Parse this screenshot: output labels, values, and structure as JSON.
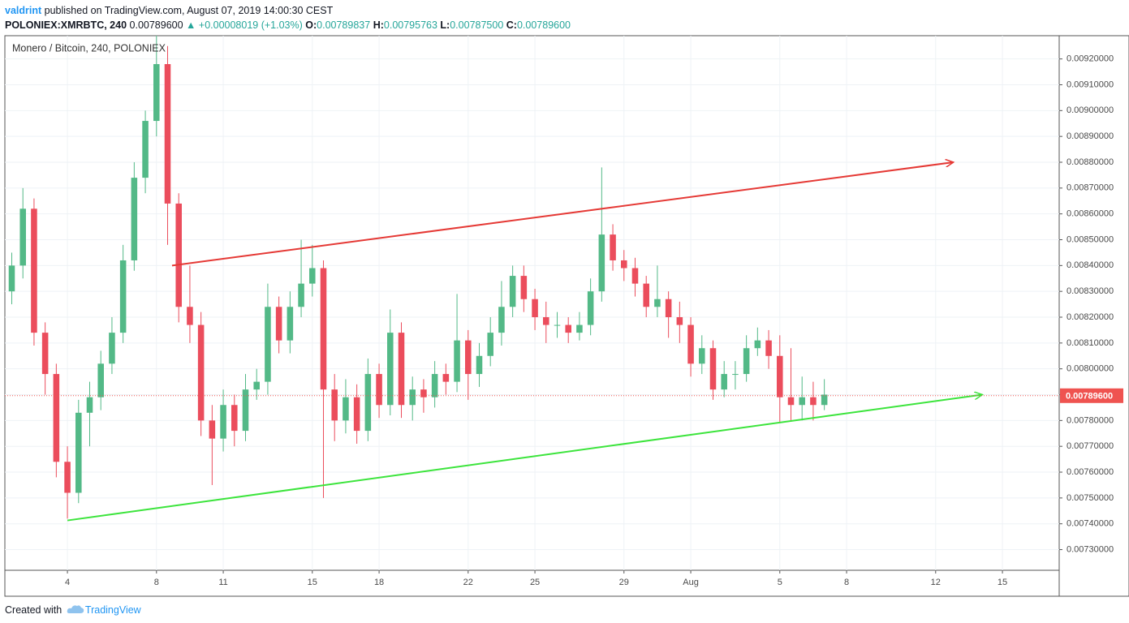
{
  "header": {
    "author": "valdrint",
    "published": "published on TradingView.com, August 07, 2019 14:00:30 CEST",
    "symbol": "POLONIEX:XMRBTC, 240",
    "price": "0.00789600",
    "change": "▲ +0.00008019 (+1.03%)",
    "o_label": "O:",
    "o": "0.00789837",
    "h_label": "H:",
    "h": "0.00795763",
    "l_label": "L:",
    "l": "0.00787500",
    "c_label": "C:",
    "c": "0.00789600"
  },
  "footer": {
    "created": "Created with",
    "brand": "TradingView"
  },
  "chart_data": {
    "type": "candlestick",
    "legend": "Monero / Bitcoin, 240, POLONIEX",
    "up_color": "#53b987",
    "down_color": "#eb4d5c",
    "grid": true,
    "xlim": [
      1.19,
      48.55
    ],
    "ylim": [
      0.00722,
      0.00929
    ],
    "xticks": [
      4,
      8,
      11,
      15,
      18,
      22,
      25,
      29,
      {
        "value": 32,
        "label": "Aug"
      },
      {
        "value": 36,
        "label": "5"
      },
      {
        "value": 39,
        "label": "8"
      },
      {
        "value": 43,
        "label": "12"
      },
      {
        "value": 46,
        "label": "15"
      }
    ],
    "yticks": [
      {
        "value": 0.0073,
        "label": "0.00730000"
      },
      {
        "value": 0.0074,
        "label": "0.00740000"
      },
      {
        "value": 0.0075,
        "label": "0.00750000"
      },
      {
        "value": 0.0076,
        "label": "0.00760000"
      },
      {
        "value": 0.0077,
        "label": "0.00770000"
      },
      {
        "value": 0.0078,
        "label": "0.00780000"
      },
      {
        "value": 0.0079,
        "label": "0.00790000"
      },
      {
        "value": 0.008,
        "label": "0.00800000"
      },
      {
        "value": 0.0081,
        "label": "0.00810000"
      },
      {
        "value": 0.0082,
        "label": "0.00820000"
      },
      {
        "value": 0.0083,
        "label": "0.00830000"
      },
      {
        "value": 0.0084,
        "label": "0.00840000"
      },
      {
        "value": 0.0085,
        "label": "0.00850000"
      },
      {
        "value": 0.0086,
        "label": "0.00860000"
      },
      {
        "value": 0.0087,
        "label": "0.00870000"
      },
      {
        "value": 0.0088,
        "label": "0.00880000"
      },
      {
        "value": 0.0089,
        "label": "0.00890000"
      },
      {
        "value": 0.009,
        "label": "0.00900000"
      },
      {
        "value": 0.0091,
        "label": "0.00910000"
      },
      {
        "value": 0.0092,
        "label": "0.00920000"
      }
    ],
    "x": [
      1.5,
      2,
      2.5,
      3,
      3.5,
      4,
      4.5,
      5,
      5.5,
      6,
      6.5,
      7,
      7.5,
      8,
      8.5,
      9,
      9.5,
      10,
      10.5,
      11,
      11.5,
      12,
      12.5,
      13,
      13.5,
      14,
      14.5,
      15,
      15.5,
      16,
      16.5,
      17,
      17.5,
      18,
      18.5,
      19,
      19.5,
      20,
      20.5,
      21,
      21.5,
      22,
      22.5,
      23,
      23.5,
      24,
      24.5,
      25,
      25.5,
      26,
      26.5,
      27,
      27.5,
      28,
      28.5,
      29,
      29.5,
      30,
      30.5,
      31,
      31.5,
      32,
      32.5,
      33,
      33.5,
      34,
      34.5,
      35,
      35.5,
      36,
      36.5,
      37,
      37.5,
      38
    ],
    "open": [
      0.0083,
      0.0084,
      0.00862,
      0.00814,
      0.00798,
      0.00764,
      0.00752,
      0.00783,
      0.00789,
      0.00802,
      0.00814,
      0.00842,
      0.00874,
      0.00896,
      0.00918,
      0.00864,
      0.00824,
      0.00817,
      0.0078,
      0.00773,
      0.00786,
      0.00776,
      0.00792,
      0.00795,
      0.00824,
      0.00811,
      0.00824,
      0.00833,
      0.00839,
      0.00792,
      0.0078,
      0.00789,
      0.00776,
      0.00798,
      0.00786,
      0.00814,
      0.00786,
      0.00792,
      0.00789,
      0.00798,
      0.00795,
      0.00811,
      0.00798,
      0.00805,
      0.00814,
      0.00824,
      0.00836,
      0.00827,
      0.0082,
      0.00817,
      0.00817,
      0.00814,
      0.00817,
      0.0083,
      0.00852,
      0.00842,
      0.00839,
      0.00833,
      0.00824,
      0.00827,
      0.0082,
      0.00817,
      0.00802,
      0.00808,
      0.00792,
      0.00798,
      0.00798,
      0.00808,
      0.00811,
      0.00805,
      0.00789,
      0.00786,
      0.00789,
      0.00786
    ],
    "high": [
      0.00845,
      0.0087,
      0.00866,
      0.00818,
      0.00802,
      0.0077,
      0.00788,
      0.00795,
      0.00807,
      0.0082,
      0.00848,
      0.0088,
      0.009,
      0.00935,
      0.00925,
      0.00868,
      0.0084,
      0.00822,
      0.00786,
      0.00792,
      0.0079,
      0.00798,
      0.008,
      0.00833,
      0.00828,
      0.0083,
      0.0085,
      0.00848,
      0.00842,
      0.00798,
      0.00796,
      0.00794,
      0.00804,
      0.00802,
      0.00823,
      0.00818,
      0.00797,
      0.00796,
      0.00803,
      0.00802,
      0.00829,
      0.00815,
      0.0081,
      0.0082,
      0.00834,
      0.0084,
      0.0084,
      0.00831,
      0.00826,
      0.00822,
      0.0082,
      0.00822,
      0.00835,
      0.00878,
      0.00856,
      0.00846,
      0.00843,
      0.00836,
      0.0084,
      0.0083,
      0.00826,
      0.0082,
      0.00813,
      0.00811,
      0.00803,
      0.00803,
      0.00813,
      0.00816,
      0.00815,
      0.00813,
      0.00808,
      0.00797,
      0.00795,
      0.00796
    ],
    "low": [
      0.00825,
      0.00835,
      0.00809,
      0.0079,
      0.00758,
      0.00742,
      0.00748,
      0.0077,
      0.00784,
      0.00798,
      0.0081,
      0.00838,
      0.00868,
      0.0089,
      0.00848,
      0.00818,
      0.0081,
      0.00774,
      0.00755,
      0.00768,
      0.0077,
      0.00772,
      0.00788,
      0.0079,
      0.00806,
      0.00806,
      0.0082,
      0.00828,
      0.0075,
      0.00772,
      0.00775,
      0.00771,
      0.00772,
      0.00781,
      0.00782,
      0.00781,
      0.0078,
      0.00783,
      0.00785,
      0.0079,
      0.00791,
      0.00788,
      0.00793,
      0.00801,
      0.00809,
      0.0082,
      0.00822,
      0.00815,
      0.0081,
      0.00812,
      0.0081,
      0.00811,
      0.00813,
      0.00826,
      0.00838,
      0.00834,
      0.00828,
      0.0082,
      0.0082,
      0.00812,
      0.0081,
      0.00797,
      0.00798,
      0.00788,
      0.00789,
      0.00792,
      0.00795,
      0.00805,
      0.008,
      0.00779,
      0.0078,
      0.0078,
      0.0078,
      0.00784
    ],
    "close": [
      0.0084,
      0.00862,
      0.00814,
      0.00798,
      0.00764,
      0.00752,
      0.00783,
      0.00789,
      0.00802,
      0.00814,
      0.00842,
      0.00874,
      0.00896,
      0.00918,
      0.00864,
      0.00824,
      0.00817,
      0.0078,
      0.00773,
      0.00786,
      0.00776,
      0.00792,
      0.00795,
      0.00824,
      0.00811,
      0.00824,
      0.00833,
      0.00839,
      0.00792,
      0.0078,
      0.00789,
      0.00776,
      0.00798,
      0.00786,
      0.00814,
      0.00786,
      0.00792,
      0.00789,
      0.00798,
      0.00795,
      0.00811,
      0.00798,
      0.00805,
      0.00814,
      0.00824,
      0.00836,
      0.00827,
      0.0082,
      0.00817,
      0.00817,
      0.00814,
      0.00817,
      0.0083,
      0.00852,
      0.00842,
      0.00839,
      0.00833,
      0.00824,
      0.00827,
      0.0082,
      0.00817,
      0.00802,
      0.00808,
      0.00792,
      0.00798,
      0.00798,
      0.00808,
      0.00811,
      0.00805,
      0.00789,
      0.00786,
      0.00789,
      0.00786,
      0.0079
    ],
    "last_price": {
      "value": 0.007896,
      "label": "0.00789600",
      "color": "#ef5350"
    },
    "trendlines": [
      {
        "color": "#e53935",
        "points": [
          [
            8.7,
            0.0084
          ],
          [
            43.8,
            0.0088
          ]
        ]
      },
      {
        "color": "#3ce43c",
        "points": [
          [
            4,
            0.007413
          ],
          [
            45.1,
            0.0079
          ]
        ]
      }
    ]
  }
}
